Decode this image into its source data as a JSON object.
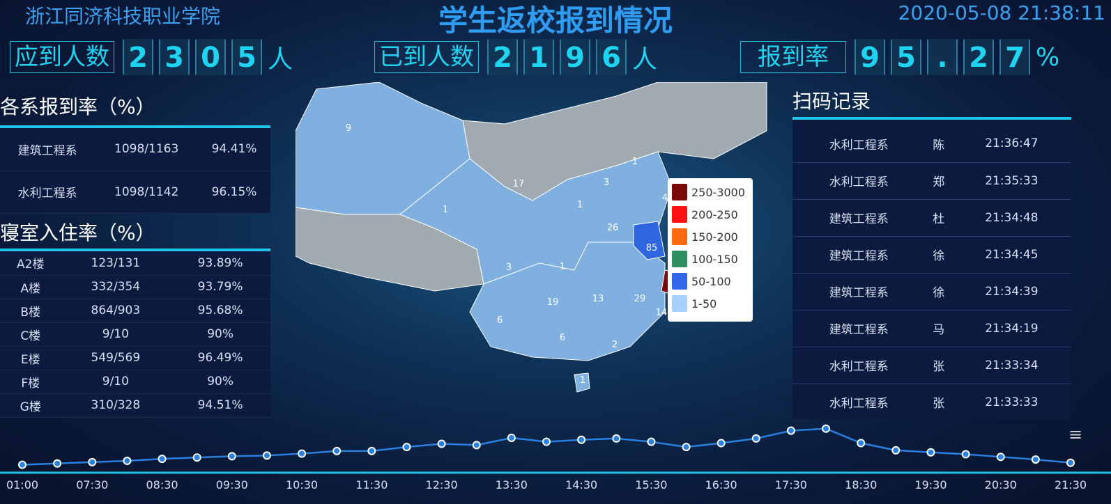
{
  "header": {
    "school": "浙江同济科技职业学院",
    "title": "学生返校报到情况",
    "datetime": "2020-05-08 21:38:11"
  },
  "stats": [
    {
      "label": "应到人数",
      "digits": [
        "2",
        "3",
        "0",
        "5"
      ],
      "unit": "人"
    },
    {
      "label": "已到人数",
      "digits": [
        "2",
        "1",
        "9",
        "6"
      ],
      "unit": "人"
    },
    {
      "label": "报到率",
      "digits": [
        "9",
        "5",
        ".",
        "2",
        "7"
      ],
      "unit": "%"
    }
  ],
  "dept": {
    "title": "各系报到率（%）",
    "rows": [
      [
        "建筑工程系",
        "1098/1163",
        "94.41%"
      ],
      [
        "水利工程系",
        "1098/1142",
        "96.15%"
      ]
    ]
  },
  "dorm": {
    "title": "寝室入住率（%）",
    "rows": [
      [
        "A2楼",
        "123/131",
        "93.89%"
      ],
      [
        "A楼",
        "332/354",
        "93.79%"
      ],
      [
        "B楼",
        "864/903",
        "95.68%"
      ],
      [
        "C楼",
        "9/10",
        "90%"
      ],
      [
        "E楼",
        "549/569",
        "96.49%"
      ],
      [
        "F楼",
        "9/10",
        "90%"
      ],
      [
        "G楼",
        "310/328",
        "94.51%"
      ]
    ]
  },
  "scan": {
    "title": "扫码记录",
    "rows": [
      [
        "水利工程系",
        "陈",
        "21:36:47"
      ],
      [
        "水利工程系",
        "郑",
        "21:35:33"
      ],
      [
        "建筑工程系",
        "杜",
        "21:34:48"
      ],
      [
        "建筑工程系",
        "徐",
        "21:34:45"
      ],
      [
        "建筑工程系",
        "徐",
        "21:34:39"
      ],
      [
        "建筑工程系",
        "马",
        "21:34:19"
      ],
      [
        "水利工程系",
        "张",
        "21:33:34"
      ],
      [
        "水利工程系",
        "张",
        "21:33:33"
      ]
    ]
  },
  "map": {
    "legend": [
      {
        "label": "250-3000",
        "color": "#7a0a0a"
      },
      {
        "label": "200-250",
        "color": "#ff1010"
      },
      {
        "label": "150-200",
        "color": "#ff6a10"
      },
      {
        "label": "100-150",
        "color": "#2f8f5f"
      },
      {
        "label": "50-100",
        "color": "#3366e8"
      },
      {
        "label": "1-50",
        "color": "#a8d0ff"
      }
    ],
    "labels": [
      "9",
      "17",
      "1",
      "3",
      "1",
      "3",
      "1",
      "26",
      "85",
      "4",
      "1",
      "19",
      "13",
      "29",
      "6",
      "6",
      "2",
      "14",
      "1"
    ],
    "colors": {
      "none": "#a0aab0",
      "low": "#7fb0e0",
      "mid": "#2f66e0",
      "high": "#7a0a0a"
    }
  },
  "chart_data": {
    "type": "line",
    "x_labels": [
      "01:00",
      "07:30",
      "08:30",
      "09:30",
      "10:30",
      "11:30",
      "12:30",
      "13:30",
      "14:30",
      "15:30",
      "16:30",
      "17:30",
      "18:30",
      "19:30",
      "20:30",
      "21:30"
    ],
    "values": [
      11,
      13,
      15,
      17,
      20,
      22,
      24,
      25,
      28,
      32,
      32,
      38,
      43,
      41,
      52,
      46,
      49,
      51,
      46,
      38,
      44,
      51,
      63,
      66,
      44,
      33,
      30,
      27,
      23,
      19,
      14
    ],
    "color": "#2a80e0",
    "grid": false
  }
}
